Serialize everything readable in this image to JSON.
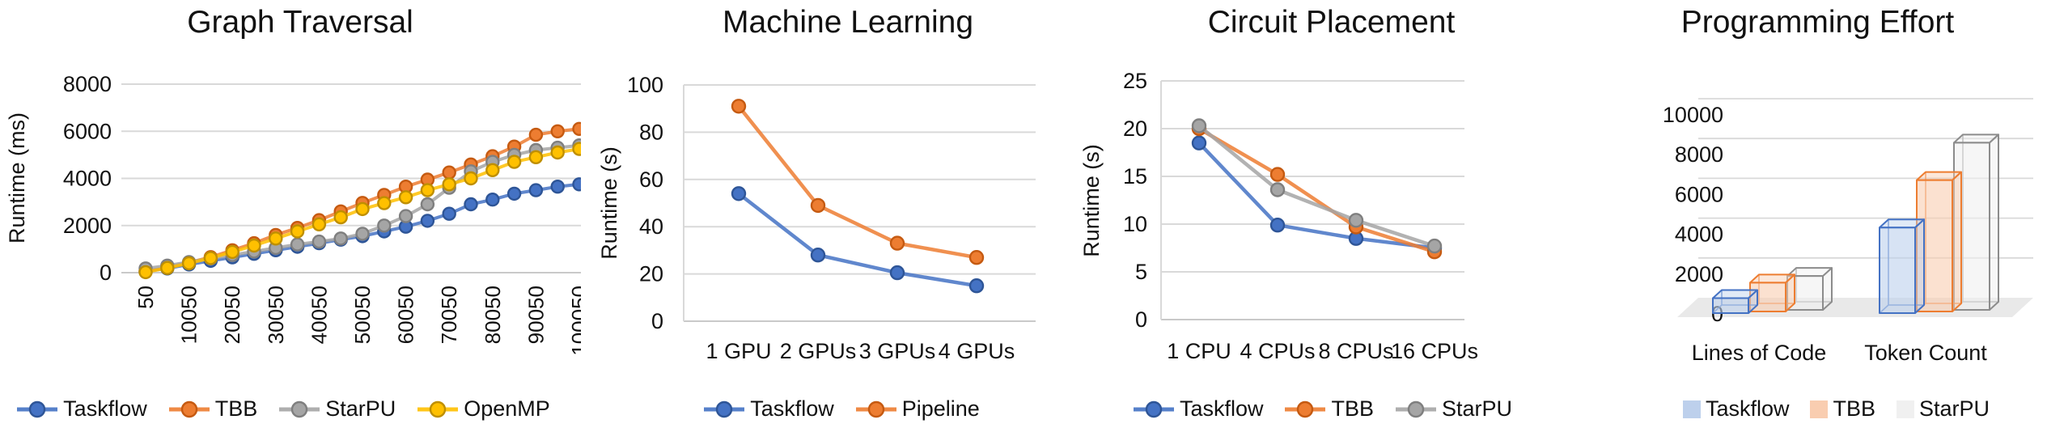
{
  "page": {
    "background": "#ffffff",
    "grid_color": "#d9d9d9",
    "zero_line_color": "#c9c9c9",
    "text_color": "#111111"
  },
  "chart_data": [
    {
      "type": "line",
      "title": "Graph Traversal",
      "ylabel": "Runtime (ms)",
      "ylim": [
        0,
        8000
      ],
      "yticks": [
        0,
        2000,
        4000,
        6000,
        8000
      ],
      "x": [
        50,
        5050,
        10050,
        15050,
        20050,
        25050,
        30050,
        35050,
        40050,
        45050,
        50050,
        55050,
        60050,
        65050,
        70050,
        75050,
        80050,
        85050,
        90050,
        95050,
        100050
      ],
      "x_tick_labels": [
        "50",
        "10050",
        "20050",
        "30050",
        "40050",
        "50050",
        "60050",
        "70050",
        "80050",
        "90050",
        "100050"
      ],
      "x_tick_rotation": -90,
      "legend_position": "bottom",
      "series": [
        {
          "name": "Taskflow",
          "color": "#4472C4",
          "marker_edge": "#2E5597",
          "values": [
            60,
            180,
            350,
            500,
            650,
            800,
            950,
            1100,
            1250,
            1400,
            1550,
            1750,
            1950,
            2200,
            2500,
            2900,
            3100,
            3350,
            3500,
            3650,
            3750
          ]
        },
        {
          "name": "TBB",
          "color": "#ED7D31",
          "marker_edge": "#C55A11",
          "values": [
            50,
            220,
            430,
            660,
            950,
            1250,
            1600,
            1900,
            2230,
            2600,
            2960,
            3300,
            3650,
            3950,
            4250,
            4590,
            4940,
            5350,
            5850,
            6000,
            6100
          ]
        },
        {
          "name": "StarPU",
          "color": "#A5A5A5",
          "marker_edge": "#7F7F7F",
          "values": [
            180,
            300,
            450,
            600,
            750,
            900,
            1050,
            1200,
            1320,
            1450,
            1650,
            2000,
            2400,
            2900,
            3600,
            4300,
            4700,
            5000,
            5200,
            5300,
            5400
          ]
        },
        {
          "name": "OpenMP",
          "color": "#FFC000",
          "marker_edge": "#BF8F00",
          "values": [
            20,
            200,
            400,
            620,
            880,
            1150,
            1450,
            1750,
            2050,
            2350,
            2700,
            2950,
            3200,
            3500,
            3750,
            4000,
            4350,
            4700,
            4900,
            5100,
            5250
          ]
        }
      ]
    },
    {
      "type": "line",
      "title": "Machine Learning",
      "ylabel": "Runtime (s)",
      "ylim": [
        0,
        100
      ],
      "yticks": [
        0,
        20,
        40,
        60,
        80,
        100
      ],
      "categories": [
        "1 GPU",
        "2 GPUs",
        "3 GPUs",
        "4 GPUs"
      ],
      "legend_position": "bottom",
      "series": [
        {
          "name": "Taskflow",
          "color": "#4472C4",
          "marker_edge": "#2E5597",
          "values": [
            54,
            28,
            20.5,
            15
          ]
        },
        {
          "name": "Pipeline",
          "color": "#ED7D31",
          "marker_edge": "#C55A11",
          "values": [
            91,
            49,
            33,
            27
          ]
        }
      ]
    },
    {
      "type": "line",
      "title": "Circuit Placement",
      "ylabel": "Runtime (s)",
      "ylim": [
        0,
        25
      ],
      "yticks": [
        0,
        5,
        10,
        15,
        20,
        25
      ],
      "categories": [
        "1 CPU",
        "4 CPUs",
        "8 CPUs",
        "16 CPUs"
      ],
      "legend_position": "bottom",
      "series": [
        {
          "name": "Taskflow",
          "color": "#4472C4",
          "marker_edge": "#2E5597",
          "values": [
            18.5,
            9.9,
            8.5,
            7.5
          ]
        },
        {
          "name": "TBB",
          "color": "#ED7D31",
          "marker_edge": "#C55A11",
          "values": [
            20,
            15.2,
            9.7,
            7.1
          ]
        },
        {
          "name": "StarPU",
          "color": "#A5A5A5",
          "marker_edge": "#7F7F7F",
          "values": [
            20.3,
            13.6,
            10.4,
            7.7
          ]
        }
      ]
    },
    {
      "type": "bar3d",
      "title": "Programming Effort",
      "ylabel": "",
      "ylim": [
        0,
        10000
      ],
      "yticks": [
        0,
        2000,
        4000,
        6000,
        8000,
        10000
      ],
      "categories": [
        "Lines of Code",
        "Token Count"
      ],
      "legend_position": "bottom",
      "series": [
        {
          "name": "Taskflow",
          "color": "#4472C4",
          "fill": "#BDD0EC",
          "values": [
            750,
            4300
          ]
        },
        {
          "name": "TBB",
          "color": "#ED7D31",
          "fill": "#F9CDB0",
          "values": [
            1450,
            6600
          ]
        },
        {
          "name": "StarPU",
          "color": "#8C8C8C",
          "fill": "#F0F0F0",
          "values": [
            1700,
            8400
          ]
        }
      ]
    }
  ]
}
